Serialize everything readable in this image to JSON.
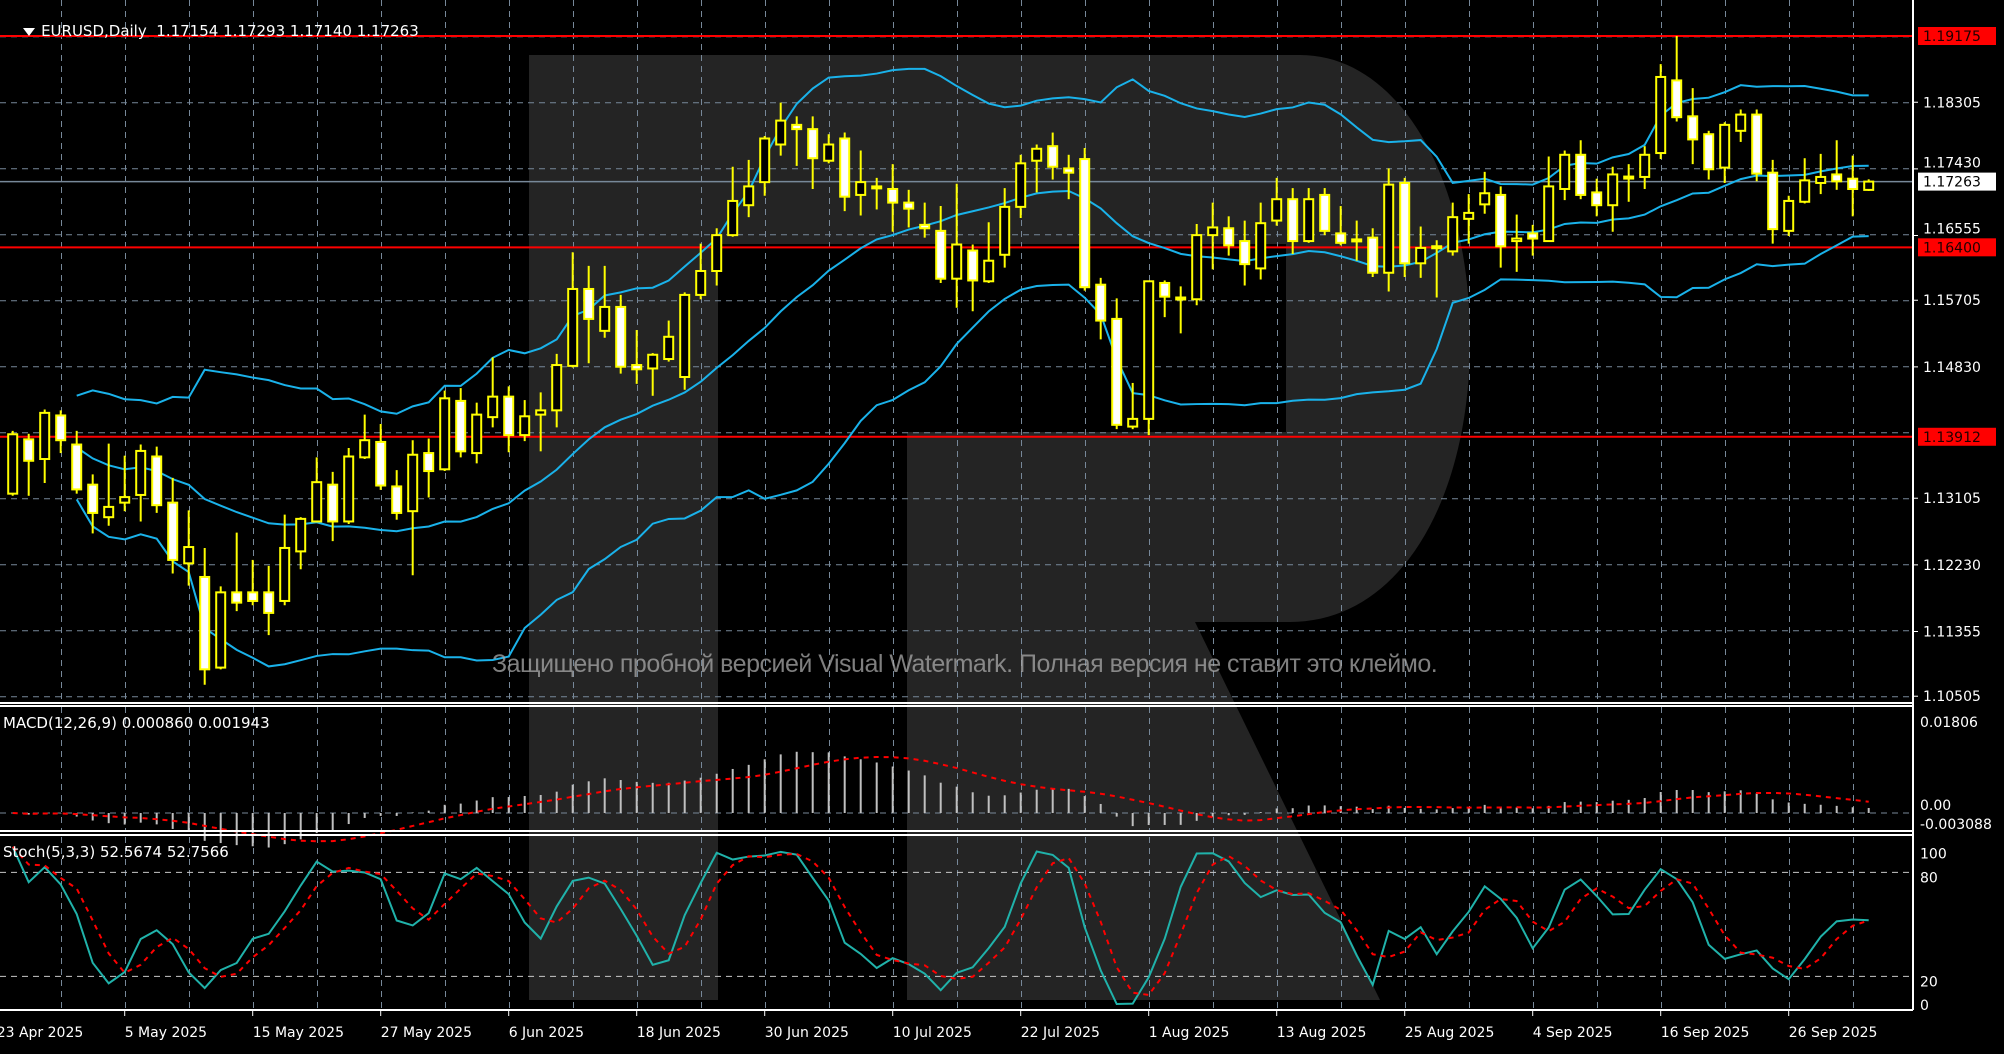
{
  "header": {
    "symbol": "EURUSD,Daily",
    "open": "1.17154",
    "high": "1.17293",
    "low": "1.17140",
    "close": "1.17263"
  },
  "colors": {
    "background": "#000000",
    "bull_body": "#000000",
    "bear_body": "#ffffff",
    "candle_outline": "#ffff00",
    "grid": "#778899",
    "level_line": "#ff0000",
    "bollinger": "#1ab2ea",
    "macd_histogram": "#c0c0c0",
    "macd_signal": "#ff0000",
    "stoch_main": "#20b2aa",
    "stoch_signal": "#ff0000",
    "current_price_line": "#778899"
  },
  "chart_data": {
    "type": "candlestick",
    "symbol": "EURUSD",
    "timeframe": "Daily",
    "ylim": [
      1.10505,
      1.19175
    ],
    "grid": true,
    "price_axis_labels": [
      "1.18305",
      "1.17430",
      "1.16555",
      "1.15705",
      "1.14830",
      "1.13105",
      "1.12230",
      "1.11355",
      "1.10505"
    ],
    "levels": [
      {
        "label": "1.19175",
        "value": 1.19175,
        "color": "#ff0000"
      },
      {
        "label": "1.16400",
        "value": 1.164,
        "color": "#ff0000"
      },
      {
        "label": "1.13912",
        "value": 1.13912,
        "color": "#ff0000"
      }
    ],
    "current_price": {
      "label": "1.17263",
      "value": 1.17263
    },
    "date_ticks": [
      {
        "label": "23 Apr 2025",
        "bar": -1
      },
      {
        "label": "5 May 2025",
        "bar": 7
      },
      {
        "label": "15 May 2025",
        "bar": 15
      },
      {
        "label": "27 May 2025",
        "bar": 23
      },
      {
        "label": "6 Jun 2025",
        "bar": 31
      },
      {
        "label": "18 Jun 2025",
        "bar": 39
      },
      {
        "label": "30 Jun 2025",
        "bar": 47
      },
      {
        "label": "10 Jul 2025",
        "bar": 55
      },
      {
        "label": "22 Jul 2025",
        "bar": 63
      },
      {
        "label": "1 Aug 2025",
        "bar": 71
      },
      {
        "label": "13 Aug 2025",
        "bar": 79
      },
      {
        "label": "25 Aug 2025",
        "bar": 87
      },
      {
        "label": "4 Sep 2025",
        "bar": 95
      },
      {
        "label": "16 Sep 2025",
        "bar": 103
      },
      {
        "label": "26 Sep 2025",
        "bar": 111
      }
    ],
    "ohlc_fields": [
      "open",
      "high",
      "low",
      "close"
    ],
    "candles": [
      [
        1.13165,
        1.1399,
        1.13137,
        1.13945
      ],
      [
        1.13878,
        1.13951,
        1.13137,
        1.13597
      ],
      [
        1.1362,
        1.14271,
        1.13305,
        1.14226
      ],
      [
        1.14192,
        1.14259,
        1.13698,
        1.13867
      ],
      [
        1.1381,
        1.1399,
        1.13165,
        1.13221
      ],
      [
        1.13283,
        1.13418,
        1.12643,
        1.12912
      ],
      [
        1.12856,
        1.13822,
        1.12744,
        1.12991
      ],
      [
        1.13047,
        1.13664,
        1.12935,
        1.1312
      ],
      [
        1.13148,
        1.1381,
        1.128,
        1.13726
      ],
      [
        1.13653,
        1.13782,
        1.12912,
        1.13014
      ],
      [
        1.13047,
        1.13373,
        1.12116,
        1.12295
      ],
      [
        1.1225,
        1.12946,
        1.11958,
        1.12464
      ],
      [
        1.12071,
        1.12452,
        1.10656,
        1.10858
      ],
      [
        1.10881,
        1.11947,
        1.10858,
        1.11869
      ],
      [
        1.11869,
        1.12654,
        1.11622,
        1.11734
      ],
      [
        1.11869,
        1.12295,
        1.117,
        1.11756
      ],
      [
        1.11869,
        1.12217,
        1.11307,
        1.11599
      ],
      [
        1.11756,
        1.1289,
        1.117,
        1.12452
      ],
      [
        1.12407,
        1.12856,
        1.12172,
        1.12834
      ],
      [
        1.128,
        1.13642,
        1.128,
        1.13316
      ],
      [
        1.13283,
        1.13451,
        1.12542,
        1.128
      ],
      [
        1.128,
        1.13765,
        1.12766,
        1.13653
      ],
      [
        1.13642,
        1.14203,
        1.1362,
        1.13867
      ],
      [
        1.13844,
        1.1408,
        1.13215,
        1.13272
      ],
      [
        1.1326,
        1.13474,
        1.12823,
        1.12912
      ],
      [
        1.12935,
        1.13867,
        1.12093,
        1.13676
      ],
      [
        1.13698,
        1.13889,
        1.13115,
        1.13462
      ],
      [
        1.13485,
        1.14518,
        1.13462,
        1.14417
      ],
      [
        1.14383,
        1.14551,
        1.13642,
        1.13721
      ],
      [
        1.13698,
        1.1436,
        1.13563,
        1.14203
      ],
      [
        1.1417,
        1.14955,
        1.14035,
        1.14439
      ],
      [
        1.14439,
        1.14574,
        1.13709,
        1.13934
      ],
      [
        1.13934,
        1.14394,
        1.13855,
        1.14181
      ],
      [
        1.14203,
        1.14495,
        1.13721,
        1.14259
      ],
      [
        1.14259,
        1.15,
        1.14035,
        1.14854
      ],
      [
        1.14843,
        1.16336,
        1.14821,
        1.15853
      ],
      [
        1.15853,
        1.16156,
        1.14877,
        1.1546
      ],
      [
        1.15303,
        1.16156,
        1.15213,
        1.15617
      ],
      [
        1.15617,
        1.15775,
        1.14742,
        1.14832
      ],
      [
        1.14854,
        1.15314,
        1.14607,
        1.14798
      ],
      [
        1.14809,
        1.15011,
        1.1445,
        1.14989
      ],
      [
        1.14933,
        1.15438,
        1.14899,
        1.15225
      ],
      [
        1.14697,
        1.15808,
        1.14529,
        1.15775
      ],
      [
        1.15775,
        1.16448,
        1.15718,
        1.16089
      ],
      [
        1.16089,
        1.1665,
        1.15898,
        1.1656
      ],
      [
        1.1656,
        1.17458,
        1.16538,
        1.17009
      ],
      [
        1.16953,
        1.17548,
        1.16796,
        1.172
      ],
      [
        1.17256,
        1.17862,
        1.17077,
        1.17829
      ],
      [
        1.1775,
        1.183,
        1.17604,
        1.18064
      ],
      [
        1.18008,
        1.1812,
        1.17469,
        1.17952
      ],
      [
        1.17952,
        1.1812,
        1.17166,
        1.1757
      ],
      [
        1.17537,
        1.17885,
        1.17503,
        1.1775
      ],
      [
        1.17829,
        1.17907,
        1.16875,
        1.17065
      ],
      [
        1.17088,
        1.17671,
        1.16818,
        1.17256
      ],
      [
        1.172,
        1.17312,
        1.16897,
        1.17189
      ],
      [
        1.17166,
        1.17492,
        1.16605,
        1.16987
      ],
      [
        1.16987,
        1.17155,
        1.16661,
        1.16908
      ],
      [
        1.16695,
        1.16987,
        1.16527,
        1.1665
      ],
      [
        1.16616,
        1.16942,
        1.15932,
        1.15988
      ],
      [
        1.15988,
        1.17234,
        1.15606,
        1.16437
      ],
      [
        1.16358,
        1.16437,
        1.15561,
        1.15965
      ],
      [
        1.15954,
        1.16729,
        1.15932,
        1.16224
      ],
      [
        1.16302,
        1.17178,
        1.16134,
        1.16931
      ],
      [
        1.16931,
        1.17615,
        1.16785,
        1.17503
      ],
      [
        1.17537,
        1.1775,
        1.17121,
        1.17694
      ],
      [
        1.17728,
        1.17907,
        1.1729,
        1.17458
      ],
      [
        1.17436,
        1.17615,
        1.17032,
        1.1738
      ],
      [
        1.17559,
        1.17705,
        1.15831,
        1.15876
      ],
      [
        1.15909,
        1.15999,
        1.15191,
        1.15438
      ],
      [
        1.1546,
        1.1573,
        1.14012,
        1.14069
      ],
      [
        1.14046,
        1.14619,
        1.14012,
        1.14147
      ],
      [
        1.14147,
        1.15965,
        1.13934,
        1.15954
      ],
      [
        1.15932,
        1.15965,
        1.15483,
        1.15752
      ],
      [
        1.15741,
        1.15887,
        1.1527,
        1.1573
      ],
      [
        1.15718,
        1.16706,
        1.1564,
        1.1656
      ],
      [
        1.1656,
        1.16987,
        1.16111,
        1.16661
      ],
      [
        1.1665,
        1.16807,
        1.16291,
        1.16426
      ],
      [
        1.16482,
        1.16751,
        1.15898,
        1.16179
      ],
      [
        1.16123,
        1.16987,
        1.15977,
        1.16717
      ],
      [
        1.16751,
        1.17312,
        1.16684,
        1.17032
      ],
      [
        1.17032,
        1.17178,
        1.16313,
        1.16482
      ],
      [
        1.16482,
        1.17178,
        1.16459,
        1.17032
      ],
      [
        1.17088,
        1.17178,
        1.1656,
        1.16616
      ],
      [
        1.16583,
        1.16942,
        1.16426,
        1.16459
      ],
      [
        1.16504,
        1.16751,
        1.16224,
        1.16493
      ],
      [
        1.16527,
        1.1665,
        1.1601,
        1.16066
      ],
      [
        1.16066,
        1.17436,
        1.1582,
        1.17223
      ],
      [
        1.17245,
        1.17312,
        1.1601,
        1.1619
      ],
      [
        1.1619,
        1.16673,
        1.15999,
        1.16392
      ],
      [
        1.16403,
        1.16493,
        1.15741,
        1.16414
      ],
      [
        1.16347,
        1.16987,
        1.16291,
        1.16796
      ],
      [
        1.16774,
        1.17099,
        1.16448,
        1.16852
      ],
      [
        1.16964,
        1.17391,
        1.16841,
        1.1711
      ],
      [
        1.17088,
        1.172,
        1.16134,
        1.16414
      ],
      [
        1.16482,
        1.1683,
        1.16078,
        1.16515
      ],
      [
        1.16583,
        1.16695,
        1.16291,
        1.16515
      ],
      [
        1.16482,
        1.17593,
        1.16482,
        1.172
      ],
      [
        1.17166,
        1.17671,
        1.1702,
        1.17615
      ],
      [
        1.17615,
        1.17806,
        1.17032,
        1.17088
      ],
      [
        1.17121,
        1.17301,
        1.16807,
        1.16953
      ],
      [
        1.16953,
        1.17458,
        1.16605,
        1.17357
      ],
      [
        1.17318,
        1.17492,
        1.16998,
        1.17329
      ],
      [
        1.17324,
        1.17728,
        1.17166,
        1.17615
      ],
      [
        1.17638,
        1.18805,
        1.17559,
        1.18637
      ],
      [
        1.18592,
        1.19175,
        1.18053,
        1.18109
      ],
      [
        1.1812,
        1.18491,
        1.17492,
        1.17817
      ],
      [
        1.17885,
        1.1793,
        1.1729,
        1.17425
      ],
      [
        1.17447,
        1.18042,
        1.17245,
        1.18008
      ],
      [
        1.1793,
        1.1821,
        1.17784,
        1.18143
      ],
      [
        1.18143,
        1.1821,
        1.17267,
        1.17368
      ],
      [
        1.1738,
        1.17548,
        1.16448,
        1.16639
      ],
      [
        1.16616,
        1.17077,
        1.16549,
        1.17009
      ],
      [
        1.16998,
        1.1757,
        1.16976,
        1.17279
      ],
      [
        1.17245,
        1.17627,
        1.17099,
        1.17324
      ],
      [
        1.17357,
        1.17806,
        1.17155,
        1.17267
      ],
      [
        1.17301,
        1.17604,
        1.16807,
        1.17166
      ],
      [
        1.17154,
        1.17293,
        1.1714,
        1.17263
      ]
    ],
    "bollinger": {
      "period": 20,
      "deviation": 2
    },
    "macd": {
      "label": "MACD(12,26,9)",
      "main": "0.000860",
      "signal": "0.001943",
      "fast": 12,
      "slow": 26,
      "signal_period": 9,
      "ylim": [
        -0.003088,
        0.01806
      ],
      "axis_labels": {
        "top": "0.01806",
        "zero": "0.00",
        "bottom": "-0.003088"
      }
    },
    "stochastic": {
      "label": "Stoch(5,3,3)",
      "main": "52.5674",
      "signal": "52.7566",
      "k": 5,
      "d": 3,
      "slowing": 3,
      "ylim": [
        0,
        100
      ],
      "axis_labels": [
        "100",
        "80",
        "20",
        "0"
      ],
      "levels": [
        20,
        80
      ]
    }
  },
  "watermark": {
    "text": "Защищено пробной версией Visual Watermark. Полная версия не ставит это клеймо.",
    "logo_letter": "R"
  }
}
